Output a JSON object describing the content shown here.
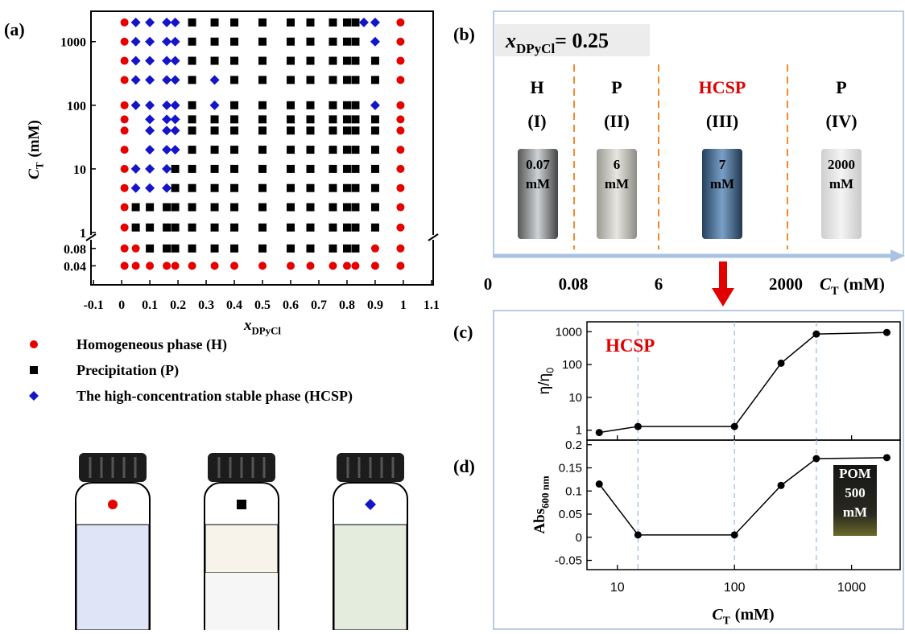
{
  "chart_data": [
    {
      "type": "scatter",
      "label": "(a)",
      "xlabel": {
        "main": "x",
        "sub": "DPyCl"
      },
      "ylabel": {
        "main": "C",
        "sub": "T",
        "unit": "(mM)"
      },
      "xlim": [
        -0.109,
        1.106
      ],
      "xticks": [
        -0.1,
        0,
        0.1,
        0.2,
        0.3,
        0.4,
        0.5,
        0.6,
        0.7,
        0.8,
        0.9,
        1,
        1.1
      ],
      "ylim": [
        1,
        3000
      ],
      "yscale": "log",
      "yticks": [
        1,
        10,
        100,
        1000
      ],
      "ylim_lower": [
        0,
        0.1
      ],
      "yticks_lower": [
        0.04,
        0.08
      ],
      "axis_break": true,
      "series": [
        {
          "name": "Homogeneous phase (H)",
          "color": "#e60000",
          "marker": "circle",
          "x": [
            0.01,
            0.01,
            0.01,
            0.01,
            0.01,
            0.01,
            0.01,
            0.01,
            0.01,
            0.01,
            0.01,
            0.01,
            0.01,
            0.01,
            0.99,
            0.99,
            0.99,
            0.99,
            0.99,
            0.99,
            0.99,
            0.99,
            0.99,
            0.99,
            0.99,
            0.99,
            0.99,
            0.99,
            0.05,
            0.1,
            0.16,
            0.19,
            0.25,
            0.33,
            0.4,
            0.5,
            0.6,
            0.67,
            0.75,
            0.8,
            0.83,
            0.9,
            0.05,
            0.9
          ],
          "values": [
            2000,
            1000,
            500,
            250,
            100,
            60,
            40,
            20,
            10,
            5,
            2.5,
            1.2,
            0.08,
            0.04,
            2000,
            1000,
            500,
            250,
            100,
            60,
            40,
            20,
            10,
            5,
            2.5,
            1.2,
            0.08,
            0.04,
            0.04,
            0.04,
            0.04,
            0.04,
            0.04,
            0.04,
            0.04,
            0.04,
            0.04,
            0.04,
            0.04,
            0.04,
            0.04,
            0.04,
            0.08,
            0.08
          ]
        },
        {
          "name": "Precipitation (P)",
          "color": "#000000",
          "marker": "square",
          "x": [
            0.25,
            0.25,
            0.25,
            0.25,
            0.25,
            0.25,
            0.25,
            0.25,
            0.25,
            0.25,
            0.25,
            0.25,
            0.4,
            0.4,
            0.4,
            0.4,
            0.4,
            0.4,
            0.4,
            0.4,
            0.4,
            0.4,
            0.4,
            0.4,
            0.5,
            0.5,
            0.5,
            0.5,
            0.5,
            0.5,
            0.5,
            0.5,
            0.5,
            0.5,
            0.5,
            0.5,
            0.6,
            0.6,
            0.6,
            0.6,
            0.6,
            0.6,
            0.6,
            0.6,
            0.6,
            0.6,
            0.6,
            0.6,
            0.67,
            0.67,
            0.67,
            0.67,
            0.67,
            0.67,
            0.67,
            0.67,
            0.67,
            0.67,
            0.67,
            0.67,
            0.75,
            0.75,
            0.75,
            0.75,
            0.75,
            0.75,
            0.75,
            0.75,
            0.75,
            0.75,
            0.75,
            0.75,
            0.8,
            0.8,
            0.8,
            0.8,
            0.8,
            0.8,
            0.8,
            0.8,
            0.8,
            0.8,
            0.8,
            0.8,
            0.83,
            0.83,
            0.83,
            0.83,
            0.83,
            0.83,
            0.83,
            0.83,
            0.83,
            0.83,
            0.83,
            0.83,
            0.33,
            0.33,
            0.33,
            0.33,
            0.33,
            0.33,
            0.33,
            0.33,
            0.33,
            0.33,
            0.9,
            0.9,
            0.9,
            0.9,
            0.9,
            0.9,
            0.9,
            0.9,
            0.9,
            0.19,
            0.19,
            0.19,
            0.19,
            0.05,
            0.05,
            0.1,
            0.1,
            0.16,
            0.16,
            0.1,
            0.16,
            0.19,
            0.25,
            0.33,
            0.4,
            0.5,
            0.6,
            0.67,
            0.75,
            0.8,
            0.83
          ],
          "values": [
            2000,
            1000,
            500,
            250,
            100,
            60,
            40,
            20,
            10,
            5,
            2.5,
            1.2,
            2000,
            1000,
            500,
            250,
            100,
            60,
            40,
            20,
            10,
            5,
            2.5,
            1.2,
            2000,
            1000,
            500,
            250,
            100,
            60,
            40,
            20,
            10,
            5,
            2.5,
            1.2,
            2000,
            1000,
            500,
            250,
            100,
            60,
            40,
            20,
            10,
            5,
            2.5,
            1.2,
            2000,
            1000,
            500,
            250,
            100,
            60,
            40,
            20,
            10,
            5,
            2.5,
            1.2,
            2000,
            1000,
            500,
            250,
            100,
            60,
            40,
            20,
            10,
            5,
            2.5,
            1.2,
            2000,
            1000,
            500,
            250,
            100,
            60,
            40,
            20,
            10,
            5,
            2.5,
            1.2,
            2000,
            1000,
            500,
            250,
            100,
            60,
            40,
            20,
            10,
            5,
            2.5,
            1.2,
            2000,
            1000,
            500,
            60,
            40,
            20,
            10,
            5,
            2.5,
            1.2,
            500,
            250,
            60,
            40,
            20,
            10,
            5,
            2.5,
            1.2,
            10,
            5,
            2.5,
            1.2,
            2.5,
            1.2,
            2.5,
            1.2,
            2.5,
            1.2,
            0.08,
            0.08,
            0.08,
            0.08,
            0.08,
            0.08,
            0.08,
            0.08,
            0.08,
            0.08,
            0.08,
            0.08
          ]
        },
        {
          "name": "The high-concentration stable phase (HCSP)",
          "color": "#1414c8",
          "marker": "diamond",
          "x": [
            0.05,
            0.1,
            0.16,
            0.19,
            0.05,
            0.1,
            0.16,
            0.19,
            0.05,
            0.1,
            0.16,
            0.19,
            0.05,
            0.1,
            0.16,
            0.19,
            0.33,
            0.33,
            0.86,
            0.9,
            0.9,
            0.9,
            0.05,
            0.1,
            0.16,
            0.19,
            0.1,
            0.16,
            0.19,
            0.1,
            0.16,
            0.19,
            0.1,
            0.16,
            0.19,
            0.05,
            0.1,
            0.16,
            0.05,
            0.1,
            0.16
          ],
          "values": [
            2000,
            2000,
            2000,
            2000,
            1000,
            1000,
            1000,
            1000,
            500,
            500,
            500,
            500,
            250,
            250,
            250,
            250,
            250,
            100,
            2000,
            2000,
            1000,
            100,
            100,
            100,
            100,
            100,
            60,
            60,
            60,
            40,
            40,
            40,
            20,
            20,
            20,
            10,
            10,
            10,
            5,
            5,
            5
          ]
        }
      ]
    },
    {
      "type": "line",
      "label": "(c)",
      "annotation": "HCSP",
      "ylabel": {
        "main": "η/η",
        "sub": "0"
      },
      "x": [
        7,
        15,
        100,
        250,
        500,
        2000
      ],
      "values": [
        0.85,
        1.3,
        1.3,
        110,
        850,
        950
      ],
      "color": "#000000",
      "xlim": [
        5.5,
        2600
      ],
      "xscale": "log",
      "xticks": [
        10,
        100,
        1000
      ],
      "ylim": [
        0.5,
        2000
      ],
      "yscale": "log",
      "yticks": [
        1,
        10,
        100,
        1000
      ],
      "guides": [
        15,
        100,
        500
      ]
    },
    {
      "type": "line",
      "label": "(d)",
      "ylabel": {
        "main": "Abs",
        "sub": "600 nm"
      },
      "xlabel": {
        "main": "C",
        "sub": "T",
        "unit": "(mM)"
      },
      "x": [
        7,
        15,
        100,
        250,
        500,
        2000
      ],
      "values": [
        0.115,
        0.005,
        0.005,
        0.112,
        0.17,
        0.172
      ],
      "color": "#000000",
      "xlim": [
        5.5,
        2600
      ],
      "xscale": "log",
      "xticks": [
        10,
        100,
        1000
      ],
      "ylim": [
        -0.07,
        0.21
      ],
      "yticks": [
        -0.05,
        0,
        0.05,
        0.1,
        0.15,
        0.2
      ],
      "guides": [
        15,
        100,
        500
      ],
      "inset_text": [
        "POM",
        "500",
        "mM"
      ]
    }
  ],
  "panel_b": {
    "label": "(b)",
    "title": {
      "main": "x",
      "sub": "DPyCl",
      "unit": "= 0.25"
    },
    "phases": [
      {
        "name": "H",
        "roman": "(I)",
        "vial": [
          "0.07",
          "mM"
        ],
        "color": "#000000"
      },
      {
        "name": "P",
        "roman": "(II)",
        "vial": [
          "6",
          "mM"
        ],
        "color": "#000000"
      },
      {
        "name": "HCSP",
        "roman": "(III)",
        "vial": [
          "7",
          "mM"
        ],
        "color": "#e00000"
      },
      {
        "name": "P",
        "roman": "(IV)",
        "vial": [
          "2000",
          "mM"
        ],
        "color": "#000000"
      }
    ],
    "axis_labels": [
      "0",
      "0.08",
      "6",
      "2000"
    ],
    "axis_title": {
      "main": "C",
      "sub": "T",
      "unit": "(mM)"
    }
  }
}
